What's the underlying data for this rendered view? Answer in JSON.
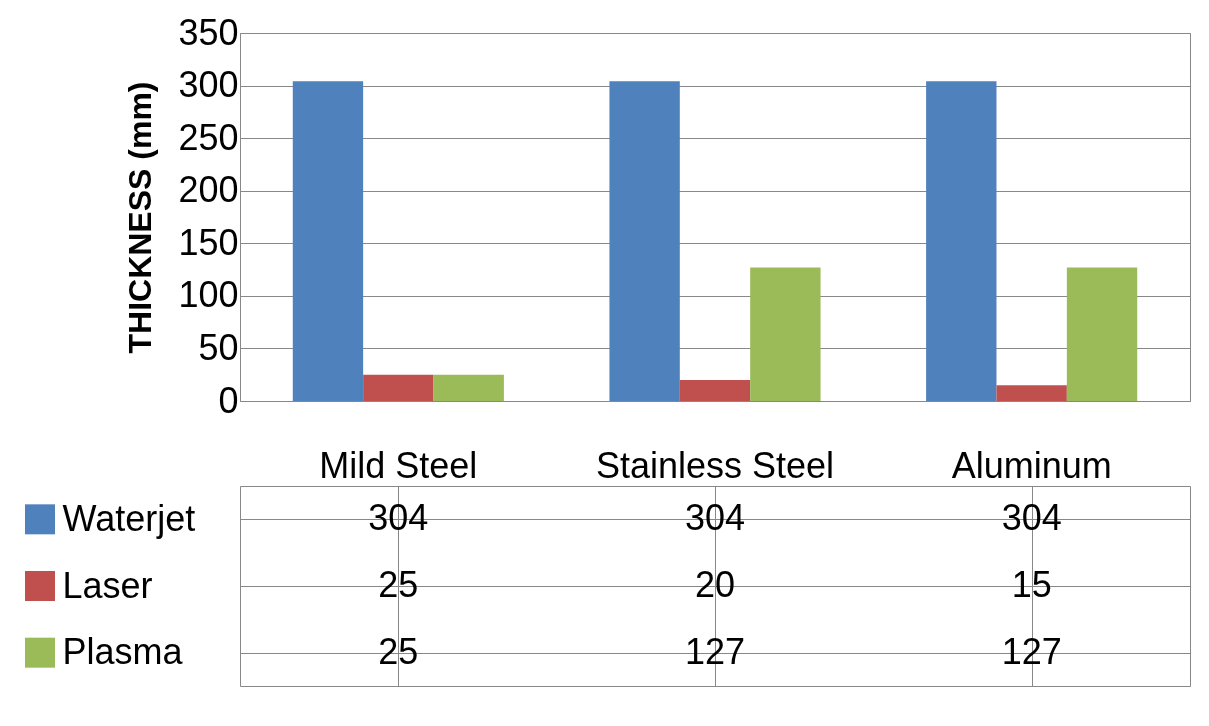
{
  "chart_data": {
    "type": "bar",
    "ylabel": "THICKNESS (mm)",
    "categories": [
      "Mild Steel",
      "Stainless Steel",
      "Aluminum"
    ],
    "series": [
      {
        "name": "Waterjet",
        "color": "#4f81bd",
        "values": [
          304,
          304,
          304
        ]
      },
      {
        "name": "Laser",
        "color": "#c0504d",
        "values": [
          25,
          20,
          15
        ]
      },
      {
        "name": "Plasma",
        "color": "#9bbb59",
        "values": [
          25,
          127,
          127
        ]
      }
    ],
    "ylim": [
      0,
      350
    ],
    "yticks": [
      0,
      50,
      100,
      150,
      200,
      250,
      300,
      350
    ],
    "grid": "y",
    "legend": "bottom",
    "data_labels": true
  }
}
